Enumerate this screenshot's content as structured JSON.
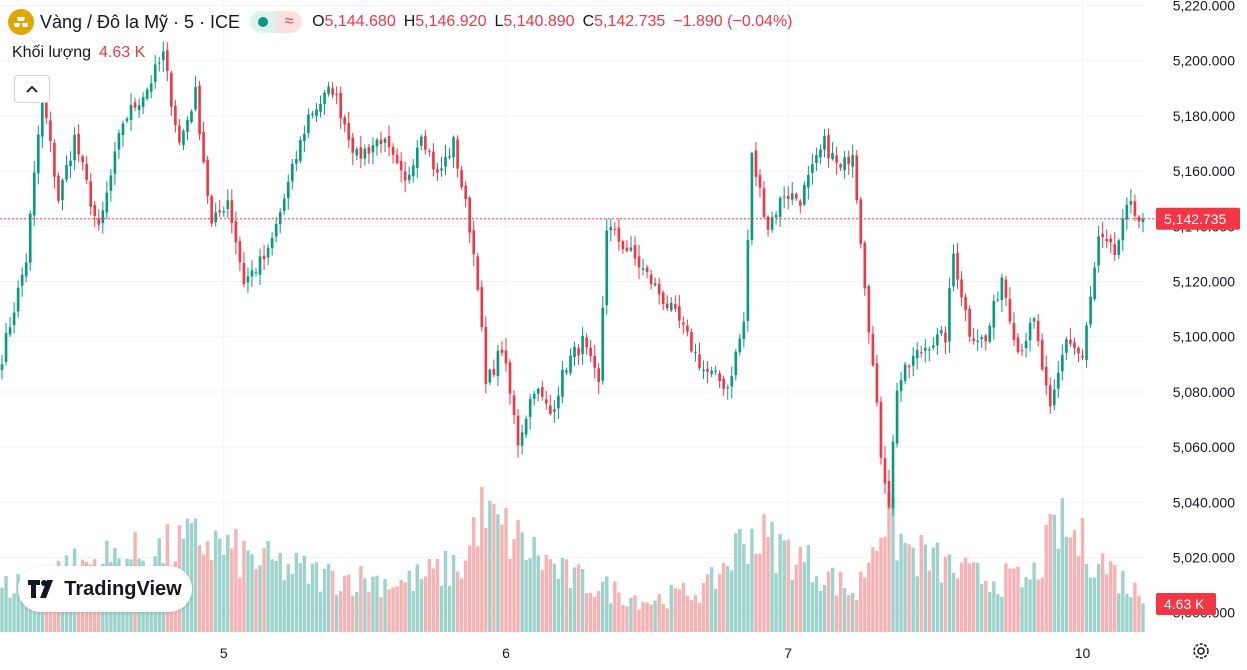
{
  "header": {
    "symbol": "Vàng / Đô la Mỹ · 5 · ICE",
    "open_label": "O",
    "open": "5,144.680",
    "high_label": "H",
    "high": "5,146.920",
    "low_label": "L",
    "low": "5,140.890",
    "close_label": "C",
    "close": "5,142.735",
    "change": "−1.890 (−0.04%)",
    "wave_glyph": "≈"
  },
  "volume": {
    "label": "Khối lượng",
    "value": "4.63 K"
  },
  "brand": "TradingView",
  "colors": {
    "up": "#089981",
    "down": "#f23645",
    "up_volume": "#9dd3ca",
    "down_volume": "#f7b2b4",
    "grid": "#f0f3fa",
    "current_price_line": "#f23645"
  },
  "icons": [
    "gold-symbol-icon",
    "collapse-chevron-icon",
    "tradingview-logo-icon",
    "settings-gear-icon"
  ],
  "chart_data": {
    "type": "candlestick",
    "timeframe": "5",
    "y_axis": {
      "ticks": [
        "5,220.000",
        "5,200.000",
        "5,180.000",
        "5,160.000",
        "5,140.000",
        "5,120.000",
        "5,100.000",
        "5,080.000",
        "5,060.000",
        "5,040.000",
        "5,020.000",
        "5,000.000"
      ],
      "tick_values": [
        5220,
        5200,
        5180,
        5160,
        5140,
        5120,
        5100,
        5080,
        5060,
        5040,
        5020,
        5000
      ],
      "range": [
        4993,
        5222
      ]
    },
    "x_axis": {
      "labels": [
        "5",
        "6",
        "7",
        "10"
      ],
      "label_index": [
        55,
        125,
        195,
        268
      ]
    },
    "last_price": 5142.735,
    "last_price_label": "5,142.735",
    "last_volume_label": "4.63 K",
    "grid": true,
    "price_path": [
      [
        0,
        5093
      ],
      [
        6,
        5128
      ],
      [
        10,
        5188
      ],
      [
        14,
        5150
      ],
      [
        18,
        5172
      ],
      [
        24,
        5138
      ],
      [
        30,
        5178
      ],
      [
        36,
        5190
      ],
      [
        40,
        5202
      ],
      [
        44,
        5170
      ],
      [
        48,
        5188
      ],
      [
        52,
        5140
      ],
      [
        56,
        5150
      ],
      [
        60,
        5120
      ],
      [
        66,
        5130
      ],
      [
        70,
        5150
      ],
      [
        76,
        5180
      ],
      [
        82,
        5190
      ],
      [
        88,
        5165
      ],
      [
        94,
        5172
      ],
      [
        100,
        5155
      ],
      [
        104,
        5175
      ],
      [
        108,
        5158
      ],
      [
        112,
        5170
      ],
      [
        116,
        5140
      ],
      [
        118,
        5120
      ],
      [
        120,
        5082
      ],
      [
        124,
        5096
      ],
      [
        128,
        5062
      ],
      [
        132,
        5082
      ],
      [
        136,
        5072
      ],
      [
        140,
        5090
      ],
      [
        144,
        5098
      ],
      [
        148,
        5082
      ],
      [
        150,
        5140
      ],
      [
        156,
        5130
      ],
      [
        162,
        5118
      ],
      [
        168,
        5105
      ],
      [
        174,
        5088
      ],
      [
        180,
        5082
      ],
      [
        184,
        5105
      ],
      [
        186,
        5165
      ],
      [
        190,
        5140
      ],
      [
        194,
        5152
      ],
      [
        198,
        5150
      ],
      [
        204,
        5170
      ],
      [
        208,
        5160
      ],
      [
        211,
        5168
      ],
      [
        214,
        5120
      ],
      [
        218,
        5058
      ],
      [
        220,
        5040
      ],
      [
        222,
        5082
      ],
      [
        226,
        5092
      ],
      [
        230,
        5098
      ],
      [
        234,
        5100
      ],
      [
        236,
        5130
      ],
      [
        240,
        5102
      ],
      [
        244,
        5098
      ],
      [
        248,
        5122
      ],
      [
        252,
        5095
      ],
      [
        256,
        5105
      ],
      [
        260,
        5072
      ],
      [
        264,
        5100
      ],
      [
        268,
        5092
      ],
      [
        272,
        5135
      ],
      [
        276,
        5130
      ],
      [
        280,
        5150
      ],
      [
        282,
        5142.735
      ]
    ],
    "volume_levels": [
      [
        0,
        0.35
      ],
      [
        20,
        0.55
      ],
      [
        40,
        0.65
      ],
      [
        50,
        0.75
      ],
      [
        60,
        0.6
      ],
      [
        80,
        0.45
      ],
      [
        100,
        0.4
      ],
      [
        115,
        0.55
      ],
      [
        118,
        0.95
      ],
      [
        125,
        0.8
      ],
      [
        140,
        0.45
      ],
      [
        160,
        0.25
      ],
      [
        175,
        0.35
      ],
      [
        185,
        0.8
      ],
      [
        195,
        0.65
      ],
      [
        205,
        0.45
      ],
      [
        212,
        0.3
      ],
      [
        218,
        0.95
      ],
      [
        225,
        0.65
      ],
      [
        240,
        0.45
      ],
      [
        255,
        0.4
      ],
      [
        262,
        0.85
      ],
      [
        270,
        0.65
      ],
      [
        282,
        0.3
      ]
    ]
  }
}
